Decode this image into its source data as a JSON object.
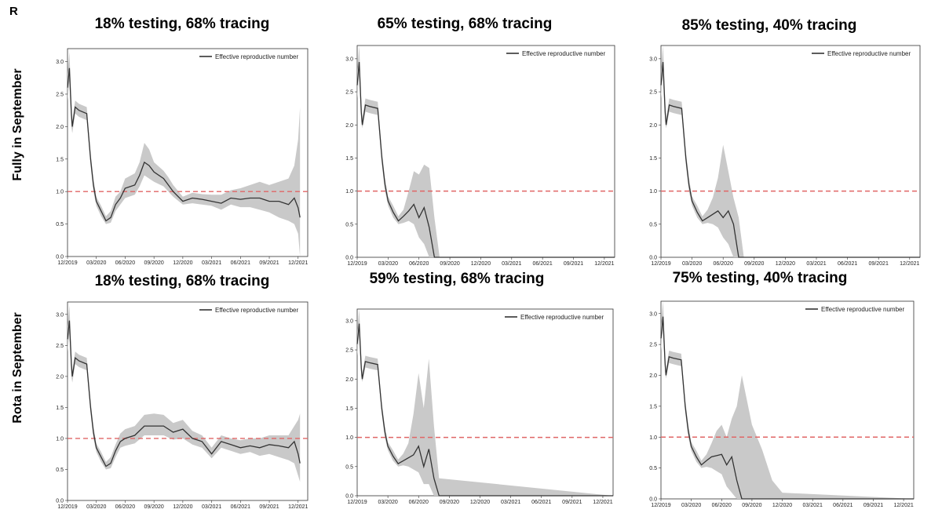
{
  "panel_letter": "R",
  "row_labels": [
    "Fully  in September",
    "Rota in September"
  ],
  "legend_label": "Effective reproductive number",
  "colors": {
    "line": "#333333",
    "band": "#c9c9c9",
    "threshold": "#e06666",
    "axes": "#333333"
  },
  "chart_data": [
    {
      "type": "line",
      "title": "18% testing, 68% tracing",
      "row": "Fully  in September",
      "ylim": [
        0,
        3.2
      ],
      "xlim": [
        0,
        25
      ],
      "x_tick_labels": [
        "12/2019",
        "03/2020",
        "06/2020",
        "09/2020",
        "12/2020",
        "03/2021",
        "06/2021",
        "09/2021",
        "12/2021"
      ],
      "y_ticks": [
        0.0,
        0.5,
        1.0,
        1.5,
        2.0,
        2.5,
        3.0
      ],
      "threshold": 1.0,
      "legend": "top-right",
      "series": [
        {
          "name": "Effective reproductive number",
          "x": [
            0,
            0.2,
            0.4,
            0.5,
            0.8,
            1.2,
            2.0,
            2.4,
            2.7,
            3.0,
            3.5,
            4.0,
            4.5,
            5.0,
            5.5,
            6.0,
            7.0,
            7.5,
            8.0,
            8.5,
            9.0,
            10.0,
            10.5,
            11.0,
            12.0,
            13.0,
            14.0,
            15.0,
            16.0,
            17.0,
            18.0,
            19.0,
            20.0,
            21.0,
            22.0,
            23.0,
            23.6,
            24.0,
            24.2
          ],
          "y": [
            2.6,
            2.9,
            2.2,
            2.0,
            2.3,
            2.25,
            2.2,
            1.5,
            1.1,
            0.85,
            0.7,
            0.55,
            0.6,
            0.8,
            0.9,
            1.05,
            1.1,
            1.25,
            1.45,
            1.4,
            1.3,
            1.2,
            1.1,
            1.0,
            0.85,
            0.9,
            0.88,
            0.85,
            0.82,
            0.9,
            0.88,
            0.9,
            0.9,
            0.85,
            0.85,
            0.8,
            0.9,
            0.75,
            0.6
          ],
          "lower": [
            2.4,
            2.7,
            2.0,
            1.9,
            2.2,
            2.15,
            2.1,
            1.4,
            1.0,
            0.78,
            0.62,
            0.5,
            0.52,
            0.7,
            0.8,
            0.9,
            0.95,
            1.08,
            1.25,
            1.2,
            1.15,
            1.08,
            1.0,
            0.92,
            0.8,
            0.82,
            0.8,
            0.78,
            0.72,
            0.8,
            0.76,
            0.76,
            0.72,
            0.68,
            0.6,
            0.55,
            0.5,
            0.35,
            0.0
          ],
          "upper": [
            2.8,
            3.15,
            2.4,
            2.1,
            2.4,
            2.35,
            2.3,
            1.6,
            1.2,
            0.92,
            0.78,
            0.62,
            0.7,
            0.92,
            1.0,
            1.2,
            1.28,
            1.45,
            1.75,
            1.65,
            1.45,
            1.32,
            1.22,
            1.1,
            0.92,
            0.98,
            0.96,
            0.95,
            0.95,
            1.02,
            1.05,
            1.1,
            1.15,
            1.1,
            1.15,
            1.2,
            1.4,
            1.8,
            2.3
          ]
        }
      ]
    },
    {
      "type": "line",
      "title": "65% testing, 68% tracing",
      "row": "Fully  in September",
      "ylim": [
        0,
        3.2
      ],
      "xlim": [
        0,
        25
      ],
      "x_tick_labels": [
        "12/2019",
        "03/2020",
        "06/2020",
        "09/2020",
        "12/2020",
        "03/2021",
        "06/2021",
        "09/2021",
        "12/2021"
      ],
      "y_ticks": [
        0.0,
        0.5,
        1.0,
        1.5,
        2.0,
        2.5,
        3.0
      ],
      "threshold": 1.0,
      "legend": "top-right",
      "series": [
        {
          "name": "Effective reproductive number",
          "x": [
            0,
            0.2,
            0.4,
            0.5,
            0.8,
            1.2,
            2.0,
            2.4,
            2.7,
            3.0,
            3.5,
            4.0,
            4.5,
            5.0,
            5.5,
            6.0,
            6.5,
            7.0,
            7.5,
            8.0,
            25.0
          ],
          "y": [
            2.6,
            2.95,
            2.2,
            2.0,
            2.3,
            2.28,
            2.25,
            1.5,
            1.1,
            0.85,
            0.68,
            0.55,
            0.62,
            0.7,
            0.8,
            0.6,
            0.75,
            0.45,
            0.0,
            0.0,
            0.0
          ],
          "lower": [
            2.4,
            2.75,
            2.05,
            1.95,
            2.2,
            2.18,
            2.15,
            1.4,
            1.0,
            0.78,
            0.6,
            0.5,
            0.52,
            0.55,
            0.5,
            0.3,
            0.2,
            0.0,
            0.0,
            0.0,
            0.0
          ],
          "upper": [
            2.8,
            3.2,
            2.4,
            2.1,
            2.4,
            2.38,
            2.35,
            1.6,
            1.2,
            0.92,
            0.78,
            0.62,
            0.72,
            1.0,
            1.3,
            1.25,
            1.4,
            1.35,
            0.6,
            0.0,
            0.0
          ]
        }
      ]
    },
    {
      "type": "line",
      "title": "85% testing, 40% tracing",
      "row": "Fully  in September",
      "ylim": [
        0,
        3.2
      ],
      "xlim": [
        0,
        25
      ],
      "x_tick_labels": [
        "12/2019",
        "03/2020",
        "06/2020",
        "09/2020",
        "12/2020",
        "03/2021",
        "06/2021",
        "09/2021",
        "12/2021"
      ],
      "y_ticks": [
        0.0,
        0.5,
        1.0,
        1.5,
        2.0,
        2.5,
        3.0
      ],
      "threshold": 1.0,
      "legend": "top-right",
      "series": [
        {
          "name": "Effective reproductive number",
          "x": [
            0,
            0.2,
            0.4,
            0.5,
            0.8,
            1.2,
            2.0,
            2.4,
            2.7,
            3.0,
            3.5,
            4.0,
            4.5,
            5.0,
            5.5,
            6.0,
            6.5,
            7.0,
            7.5,
            8.0,
            25.0
          ],
          "y": [
            2.6,
            2.95,
            2.2,
            2.0,
            2.3,
            2.28,
            2.25,
            1.5,
            1.1,
            0.85,
            0.68,
            0.55,
            0.6,
            0.65,
            0.7,
            0.6,
            0.7,
            0.5,
            0.0,
            0.0,
            0.0
          ],
          "lower": [
            2.4,
            2.75,
            2.05,
            1.95,
            2.2,
            2.18,
            2.15,
            1.4,
            1.0,
            0.78,
            0.6,
            0.5,
            0.52,
            0.5,
            0.45,
            0.3,
            0.2,
            0.0,
            0.0,
            0.0,
            0.0
          ],
          "upper": [
            2.8,
            3.2,
            2.4,
            2.1,
            2.4,
            2.38,
            2.35,
            1.6,
            1.2,
            0.92,
            0.78,
            0.62,
            0.72,
            0.9,
            1.2,
            1.7,
            1.3,
            0.9,
            0.6,
            0.0,
            0.0
          ]
        }
      ]
    },
    {
      "type": "line",
      "title": "18% testing, 68% tracing",
      "row": "Rota in September",
      "ylim": [
        0,
        3.2
      ],
      "xlim": [
        0,
        25
      ],
      "x_tick_labels": [
        "12/2019",
        "03/2020",
        "06/2020",
        "09/2020",
        "12/2020",
        "03/2021",
        "06/2021",
        "09/2021",
        "12/2021"
      ],
      "y_ticks": [
        0.0,
        0.5,
        1.0,
        1.5,
        2.0,
        2.5,
        3.0
      ],
      "threshold": 1.0,
      "legend": "top-right",
      "series": [
        {
          "name": "Effective reproductive number",
          "x": [
            0,
            0.2,
            0.4,
            0.5,
            0.8,
            1.2,
            2.0,
            2.4,
            2.7,
            3.0,
            3.5,
            4.0,
            4.5,
            5.0,
            5.5,
            6.0,
            7.0,
            8.0,
            9.0,
            10.0,
            11.0,
            12.0,
            13.0,
            14.0,
            15.0,
            16.0,
            17.0,
            18.0,
            19.0,
            20.0,
            21.0,
            22.0,
            23.0,
            23.6,
            24.0,
            24.2
          ],
          "y": [
            2.6,
            2.9,
            2.2,
            2.0,
            2.3,
            2.25,
            2.2,
            1.5,
            1.1,
            0.85,
            0.7,
            0.55,
            0.6,
            0.8,
            0.95,
            1.0,
            1.05,
            1.2,
            1.2,
            1.2,
            1.1,
            1.15,
            1.0,
            0.95,
            0.75,
            0.95,
            0.9,
            0.85,
            0.88,
            0.85,
            0.9,
            0.88,
            0.85,
            0.95,
            0.75,
            0.6
          ],
          "lower": [
            2.4,
            2.7,
            2.0,
            1.9,
            2.2,
            2.15,
            2.1,
            1.4,
            1.0,
            0.78,
            0.62,
            0.5,
            0.52,
            0.7,
            0.85,
            0.88,
            0.92,
            1.05,
            1.05,
            1.05,
            0.98,
            1.0,
            0.9,
            0.85,
            0.68,
            0.85,
            0.8,
            0.75,
            0.78,
            0.72,
            0.75,
            0.7,
            0.65,
            0.6,
            0.4,
            0.3
          ],
          "upper": [
            2.8,
            3.15,
            2.4,
            2.1,
            2.4,
            2.35,
            2.3,
            1.6,
            1.2,
            0.92,
            0.78,
            0.62,
            0.7,
            0.9,
            1.08,
            1.15,
            1.2,
            1.38,
            1.4,
            1.38,
            1.25,
            1.3,
            1.12,
            1.05,
            0.85,
            1.05,
            1.0,
            0.97,
            1.0,
            1.0,
            1.05,
            1.05,
            1.05,
            1.2,
            1.3,
            1.4
          ]
        }
      ]
    },
    {
      "type": "line",
      "title": "59% testing, 68% tracing",
      "row": "Rota in September",
      "ylim": [
        0,
        3.2
      ],
      "xlim": [
        0,
        25
      ],
      "x_tick_labels": [
        "12/2019",
        "03/2020",
        "06/2020",
        "09/2020",
        "12/2020",
        "03/2021",
        "06/2021",
        "09/2021",
        "12/2021"
      ],
      "y_ticks": [
        0.0,
        0.5,
        1.0,
        1.5,
        2.0,
        2.5,
        3.0
      ],
      "threshold": 1.0,
      "legend": "top-right",
      "series": [
        {
          "name": "Effective reproductive number",
          "x": [
            0,
            0.2,
            0.4,
            0.5,
            0.8,
            1.2,
            2.0,
            2.4,
            2.7,
            3.0,
            3.5,
            4.0,
            4.5,
            5.0,
            5.5,
            6.0,
            6.5,
            7.0,
            7.5,
            8.0,
            25.0
          ],
          "y": [
            2.6,
            2.95,
            2.2,
            2.0,
            2.3,
            2.28,
            2.25,
            1.5,
            1.1,
            0.85,
            0.68,
            0.55,
            0.6,
            0.65,
            0.7,
            0.85,
            0.5,
            0.8,
            0.3,
            0.0,
            0.0
          ],
          "lower": [
            2.4,
            2.75,
            2.05,
            1.95,
            2.2,
            2.18,
            2.15,
            1.4,
            1.0,
            0.78,
            0.6,
            0.5,
            0.52,
            0.5,
            0.45,
            0.4,
            0.2,
            0.2,
            0.0,
            0.0,
            0.0
          ],
          "upper": [
            2.8,
            3.2,
            2.4,
            2.1,
            2.4,
            2.38,
            2.35,
            1.6,
            1.2,
            0.92,
            0.78,
            0.62,
            0.72,
            0.9,
            1.4,
            2.1,
            1.5,
            2.35,
            1.2,
            0.3,
            0.0
          ]
        }
      ]
    },
    {
      "type": "line",
      "title": "75% testing, 40% tracing",
      "row": "Rota in September",
      "ylim": [
        0,
        3.2
      ],
      "xlim": [
        0,
        25
      ],
      "x_tick_labels": [
        "12/2019",
        "03/2020",
        "06/2020",
        "09/2020",
        "12/2020",
        "03/2021",
        "06/2021",
        "09/2021",
        "12/2021"
      ],
      "y_ticks": [
        0.0,
        0.5,
        1.0,
        1.5,
        2.0,
        2.5,
        3.0
      ],
      "threshold": 1.0,
      "legend": "top-right",
      "series": [
        {
          "name": "Effective reproductive number",
          "x": [
            0,
            0.2,
            0.4,
            0.5,
            0.8,
            1.2,
            2.0,
            2.4,
            2.7,
            3.0,
            3.5,
            4.0,
            4.5,
            5.0,
            5.5,
            6.0,
            6.5,
            7.0,
            7.5,
            8.0,
            9.0,
            10.0,
            11.0,
            12.0,
            25.0
          ],
          "y": [
            2.6,
            2.95,
            2.2,
            2.0,
            2.3,
            2.28,
            2.25,
            1.5,
            1.1,
            0.85,
            0.68,
            0.55,
            0.62,
            0.68,
            0.7,
            0.72,
            0.55,
            0.68,
            0.3,
            0.0,
            0.0,
            0.0,
            0.0,
            0.0,
            0.0
          ],
          "lower": [
            2.4,
            2.75,
            2.05,
            1.95,
            2.2,
            2.18,
            2.15,
            1.4,
            1.0,
            0.78,
            0.6,
            0.5,
            0.52,
            0.5,
            0.45,
            0.4,
            0.2,
            0.1,
            0.0,
            0.0,
            0.0,
            0.0,
            0.0,
            0.0,
            0.0
          ],
          "upper": [
            2.8,
            3.2,
            2.4,
            2.1,
            2.4,
            2.38,
            2.35,
            1.6,
            1.2,
            0.92,
            0.78,
            0.62,
            0.72,
            0.9,
            1.1,
            1.2,
            1.0,
            1.3,
            1.5,
            2.0,
            1.2,
            0.8,
            0.3,
            0.1,
            0.0
          ]
        }
      ]
    }
  ]
}
